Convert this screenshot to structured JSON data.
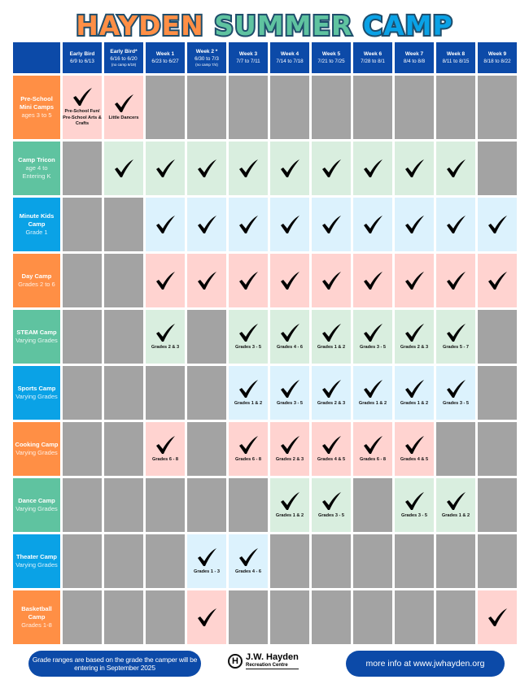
{
  "title": {
    "part1": "HAYDEN",
    "part2": "SUMMER",
    "part3": "CAMP"
  },
  "colors": {
    "header": "#0c4aa8",
    "orange": "#ff8f45",
    "green": "#5fc3a0",
    "blue": "#0aa2e6",
    "pink_cell": "#ffd3d0",
    "green_cell": "#d9eedf",
    "blue_cell": "#dcf2fd",
    "unavailable": "#a3a3a3"
  },
  "weeks": [
    {
      "label": "Early Bird",
      "dates": "6/9 to 6/13",
      "note": ""
    },
    {
      "label": "Early Bird*",
      "dates": "6/16 to 6/20",
      "note": "(no camp 6/19)"
    },
    {
      "label": "Week 1",
      "dates": "6/23 to 6/27",
      "note": ""
    },
    {
      "label": "Week 2 *",
      "dates": "6/30 to 7/3",
      "note": "(no camp 7/4)"
    },
    {
      "label": "Week 3",
      "dates": "7/7 to 7/11",
      "note": ""
    },
    {
      "label": "Week 4",
      "dates": "7/14 to 7/18",
      "note": ""
    },
    {
      "label": "Week 5",
      "dates": "7/21 to 7/25",
      "note": ""
    },
    {
      "label": "Week 6",
      "dates": "7/28 to 8/1",
      "note": ""
    },
    {
      "label": "Week 7",
      "dates": "8/4 to 8/8",
      "note": ""
    },
    {
      "label": "Week 8",
      "dates": "8/11 to 8/15",
      "note": ""
    },
    {
      "label": "Week 9",
      "dates": "8/18 to 8/22",
      "note": ""
    }
  ],
  "camps": [
    {
      "name": "Pre-School Mini Camps",
      "ages": "ages 3 to 5",
      "color": "orange",
      "cells": [
        {
          "note": "Pre-School Fun/ Pre-School Arts & Crafts"
        },
        {
          "note": "Little Dancers"
        },
        null,
        null,
        null,
        null,
        null,
        null,
        null,
        null,
        null
      ]
    },
    {
      "name": "Camp Tricon",
      "ages": "age 4 to Entering K",
      "color": "green",
      "cells": [
        null,
        {
          "note": ""
        },
        {
          "note": ""
        },
        {
          "note": ""
        },
        {
          "note": ""
        },
        {
          "note": ""
        },
        {
          "note": ""
        },
        {
          "note": ""
        },
        {
          "note": ""
        },
        {
          "note": ""
        },
        null
      ]
    },
    {
      "name": "Minute Kids Camp",
      "ages": "Grade 1",
      "color": "blue",
      "cells": [
        null,
        null,
        {
          "note": ""
        },
        {
          "note": ""
        },
        {
          "note": ""
        },
        {
          "note": ""
        },
        {
          "note": ""
        },
        {
          "note": ""
        },
        {
          "note": ""
        },
        {
          "note": ""
        },
        {
          "note": ""
        }
      ]
    },
    {
      "name": "Day Camp",
      "ages": "Grades 2 to 6",
      "color": "orange",
      "cells": [
        null,
        null,
        {
          "note": ""
        },
        {
          "note": ""
        },
        {
          "note": ""
        },
        {
          "note": ""
        },
        {
          "note": ""
        },
        {
          "note": ""
        },
        {
          "note": ""
        },
        {
          "note": ""
        },
        {
          "note": ""
        }
      ]
    },
    {
      "name": "STEAM Camp",
      "ages": "Varying Grades",
      "color": "green",
      "cells": [
        null,
        null,
        {
          "note": "Grades 2 & 3"
        },
        null,
        {
          "note": "Grades  3 - 5"
        },
        {
          "note": "Grades 4 - 6"
        },
        {
          "note": "Grades 1 & 2"
        },
        {
          "note": "Grades 3 - 5"
        },
        {
          "note": "Grades 2 & 3"
        },
        {
          "note": "Grades 5 - 7"
        },
        null
      ]
    },
    {
      "name": "Sports Camp",
      "ages": "Varying Grades",
      "color": "blue",
      "cells": [
        null,
        null,
        null,
        null,
        {
          "note": "Grades 1 & 2"
        },
        {
          "note": "Grades 3 - 5"
        },
        {
          "note": "Grades 2 & 3"
        },
        {
          "note": "Grades 1 & 2"
        },
        {
          "note": "Grades 1 & 2"
        },
        {
          "note": "Grades 3 - 5"
        },
        null
      ]
    },
    {
      "name": "Cooking Camp",
      "ages": "Varying Grades",
      "color": "orange",
      "cells": [
        null,
        null,
        {
          "note": "Grades 6 - 8"
        },
        null,
        {
          "note": "Grades 6 - 8"
        },
        {
          "note": "Grades 2 & 3"
        },
        {
          "note": "Grades 4 & 5"
        },
        {
          "note": "Grades 6 - 8"
        },
        {
          "note": "Grades 4 & 5"
        },
        null,
        null
      ]
    },
    {
      "name": "Dance Camp",
      "ages": "Varying Grades",
      "color": "green",
      "cells": [
        null,
        null,
        null,
        null,
        null,
        {
          "note": "Grades 1 & 2"
        },
        {
          "note": "Grades 3 - 5"
        },
        null,
        {
          "note": "Grades 3 - 5"
        },
        {
          "note": "Grades 1 & 2"
        },
        null
      ]
    },
    {
      "name": "Theater Camp",
      "ages": "Varying Grades",
      "color": "blue",
      "cells": [
        null,
        null,
        null,
        {
          "note": "Grades 1 - 3"
        },
        {
          "note": "Grades 4 - 6"
        },
        null,
        null,
        null,
        null,
        null,
        null
      ]
    },
    {
      "name": "Basketball Camp",
      "ages": "Grades 1-8",
      "color": "orange",
      "cells": [
        null,
        null,
        null,
        {
          "note": ""
        },
        null,
        null,
        null,
        null,
        null,
        null,
        {
          "note": ""
        }
      ]
    }
  ],
  "footer": {
    "note": "Grade ranges are based on the grade the camper will be entering in September 2025",
    "logo_letter": "H",
    "logo_name": "J.W. Hayden",
    "logo_sub": "Recreation Centre",
    "info": "more info at www.jwhayden.org"
  }
}
